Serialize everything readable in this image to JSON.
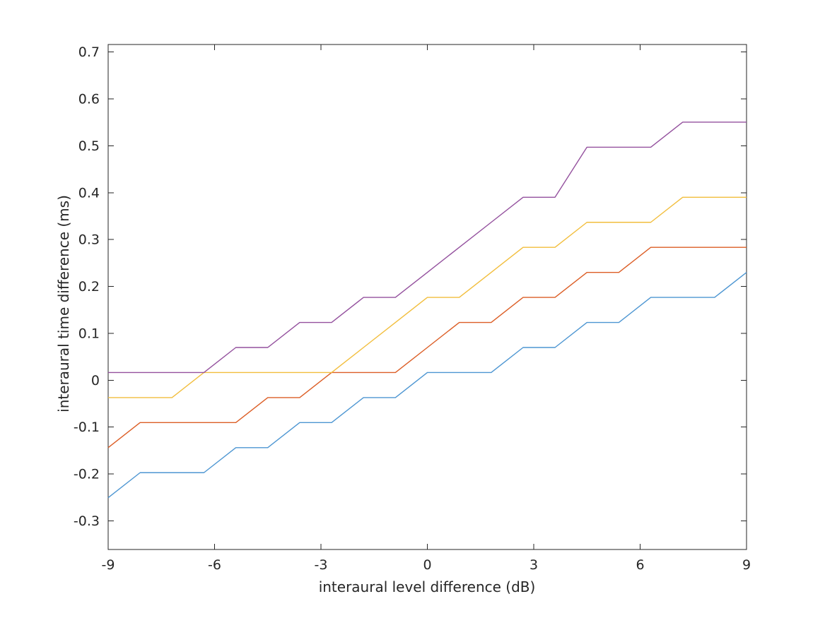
{
  "figure": {
    "background": "#ffffff",
    "axis_color": "#262626",
    "text_color": "#262626"
  },
  "chart_data": {
    "type": "line",
    "title": "",
    "xlabel": "interaural level difference (dB)",
    "ylabel": "interaural time difference (ms)",
    "xlim": [
      -9,
      9
    ],
    "ylim": [
      -0.361,
      0.716
    ],
    "grid": false,
    "legend": "none",
    "box": true,
    "x": [
      -9,
      -8.1,
      -7.2,
      -6.3,
      -5.4,
      -4.5,
      -3.6,
      -2.7,
      -1.8,
      -0.9,
      0,
      0.9,
      1.8,
      2.7,
      3.6,
      4.5,
      5.4,
      6.3,
      7.2,
      8.1,
      9
    ],
    "series": [
      {
        "name": "line-1-blue",
        "color": "#4D96D2",
        "values": [
          -0.2506,
          -0.1972,
          -0.1972,
          -0.1972,
          -0.1438,
          -0.1438,
          -0.0904,
          -0.0904,
          -0.037,
          -0.037,
          0.0164,
          0.0164,
          0.0164,
          0.0698,
          0.0698,
          0.1232,
          0.1232,
          0.1766,
          0.1766,
          0.1766,
          0.23
        ]
      },
      {
        "name": "line-2-orange",
        "color": "#DC5E26",
        "values": [
          -0.1438,
          -0.0904,
          -0.0904,
          -0.0904,
          -0.0904,
          -0.037,
          -0.037,
          0.0164,
          0.0164,
          0.0164,
          0.0698,
          0.1232,
          0.1232,
          0.1766,
          0.1766,
          0.23,
          0.23,
          0.2834,
          0.2834,
          0.2834,
          0.2834
        ]
      },
      {
        "name": "line-3-yellow",
        "color": "#F2BE3D",
        "values": [
          -0.037,
          -0.037,
          -0.037,
          0.0164,
          0.0164,
          0.0164,
          0.0164,
          0.0164,
          0.0698,
          0.1232,
          0.1766,
          0.1766,
          0.23,
          0.2834,
          0.2834,
          0.3368,
          0.3368,
          0.3368,
          0.3902,
          0.3902,
          0.3902
        ]
      },
      {
        "name": "line-4-purple",
        "color": "#94519E",
        "values": [
          0.0164,
          0.0164,
          0.0164,
          0.0164,
          0.0698,
          0.0698,
          0.1232,
          0.1232,
          0.1766,
          0.1766,
          0.23,
          0.2834,
          0.3368,
          0.3902,
          0.3902,
          0.497,
          0.497,
          0.497,
          0.5504,
          0.5504,
          0.5504
        ]
      }
    ],
    "xticks": {
      "values": [
        -9,
        -6,
        -3,
        0,
        3,
        6,
        9
      ],
      "labels": [
        "-9",
        "-6",
        "-3",
        "0",
        "3",
        "6",
        "9"
      ]
    },
    "yticks": {
      "values": [
        -0.3,
        -0.2,
        -0.1,
        0,
        0.1,
        0.2,
        0.3,
        0.4,
        0.5,
        0.6,
        0.7
      ],
      "labels": [
        "-0.3",
        "-0.2",
        "-0.1",
        "0",
        "0.1",
        "0.2",
        "0.3",
        "0.4",
        "0.5",
        "0.6",
        "0.7"
      ]
    }
  }
}
